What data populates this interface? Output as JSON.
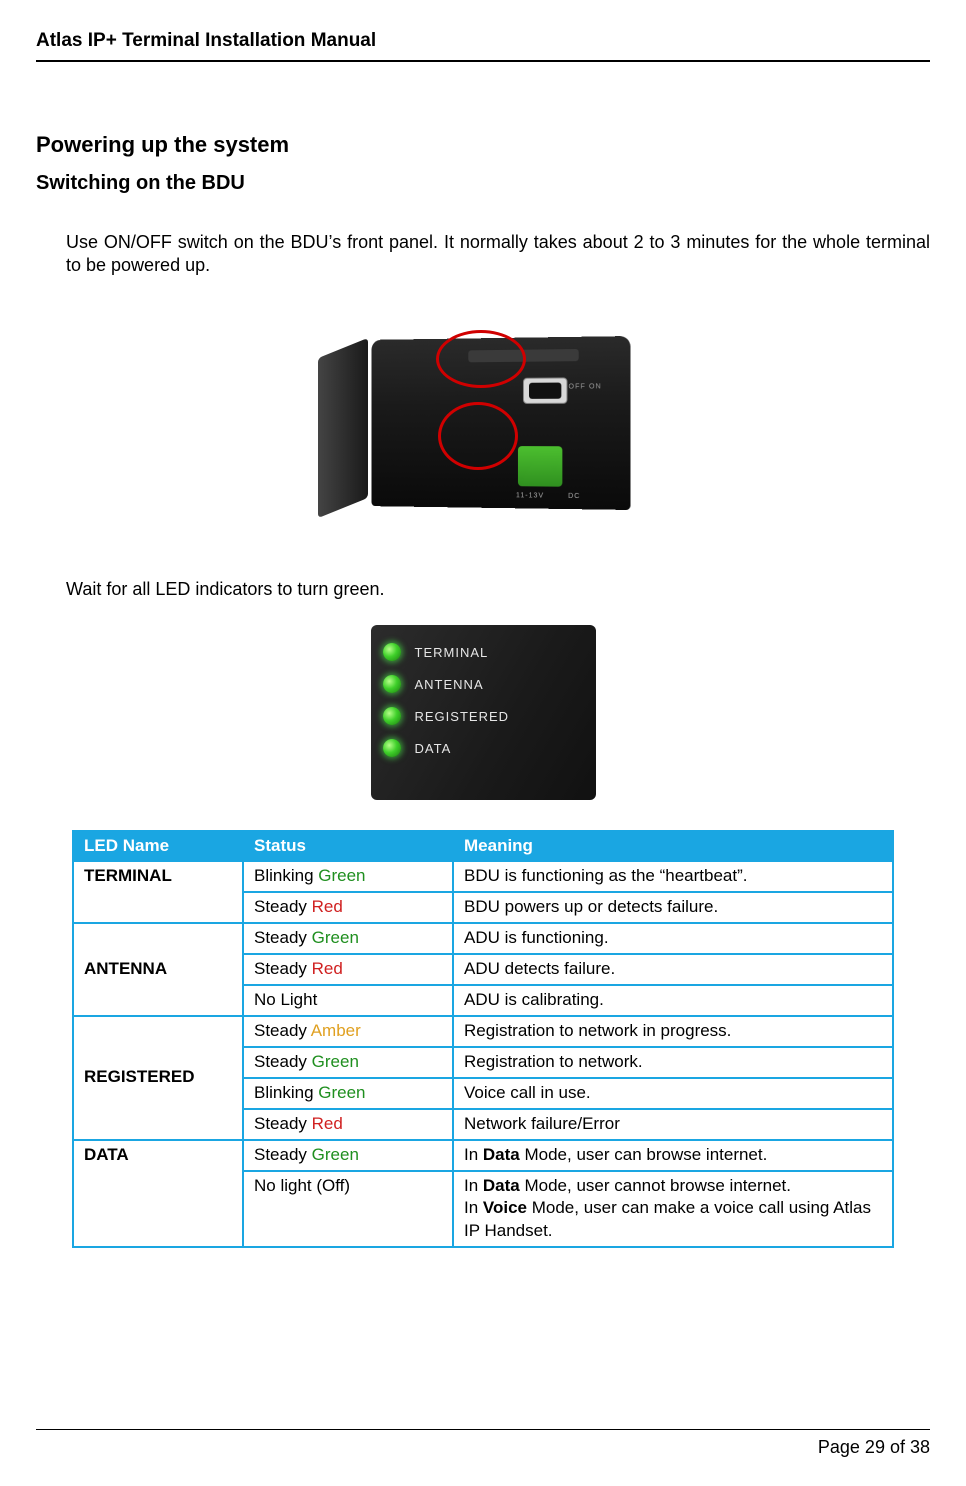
{
  "header": {
    "title": "Atlas IP+ Terminal Installation Manual"
  },
  "h1": "Powering up the system",
  "h2": "Switching on the BDU",
  "para1": "Use ON/OFF switch on the BDU’s front panel. It normally takes about 2 to 3 minutes for the whole terminal to be powered up.",
  "para2": "Wait for all LED indicators to turn green.",
  "fig1": {
    "off_on_label": "OFF    ON",
    "dc_label": "11-13V        DC",
    "oval_border_color": "#d00000"
  },
  "led_panel": {
    "background_colors": [
      "#2c2c2c",
      "#1a1a1a",
      "#111111"
    ],
    "led_color_gradient": [
      "#b6ff8a",
      "#3fd02a",
      "#1a7a0e"
    ],
    "labels": [
      "TERMINAL",
      "ANTENNA",
      "REGISTERED",
      "DATA"
    ],
    "text_color": "#e6e6e6"
  },
  "table": {
    "border_color": "#1aa6e2",
    "header_bg": "#1aa6e2",
    "header_fg": "#ffffff",
    "status_colors": {
      "green": "#1f8f1f",
      "red": "#d02020",
      "amber": "#e0a020"
    },
    "columns": [
      "LED Name",
      "Status",
      "Meaning"
    ],
    "groups": [
      {
        "name": "TERMINAL",
        "rows": [
          {
            "status_prefix": "Blinking ",
            "status_color_word": "Green",
            "status_color": "green",
            "meaning": [
              {
                "t": "BDU is functioning as the “heartbeat”."
              }
            ]
          },
          {
            "status_prefix": "Steady ",
            "status_color_word": "Red",
            "status_color": "red",
            "meaning": [
              {
                "t": "BDU powers up or detects failure."
              }
            ]
          }
        ]
      },
      {
        "name": "ANTENNA",
        "rows": [
          {
            "status_prefix": "Steady ",
            "status_color_word": "Green",
            "status_color": "green",
            "meaning": [
              {
                "t": "ADU is functioning."
              }
            ]
          },
          {
            "status_prefix": "Steady ",
            "status_color_word": "Red",
            "status_color": "red",
            "meaning": [
              {
                "t": "ADU detects failure."
              }
            ]
          },
          {
            "status_plain": "No Light",
            "meaning": [
              {
                "t": "ADU is calibrating."
              }
            ]
          }
        ]
      },
      {
        "name": "REGISTERED",
        "rows": [
          {
            "status_prefix": "Steady ",
            "status_color_word": "Amber",
            "status_color": "amber",
            "meaning": [
              {
                "t": "Registration to network in progress."
              }
            ]
          },
          {
            "status_prefix": "Steady ",
            "status_color_word": "Green",
            "status_color": "green",
            "meaning": [
              {
                "t": "Registration to network."
              }
            ]
          },
          {
            "status_prefix": "Blinking ",
            "status_color_word": "Green",
            "status_color": "green",
            "meaning": [
              {
                "t": "Voice call in use."
              }
            ]
          },
          {
            "status_prefix": "Steady ",
            "status_color_word": "Red",
            "status_color": "red",
            "meaning": [
              {
                "t": "Network failure/Error"
              }
            ]
          }
        ]
      },
      {
        "name": "DATA",
        "rows": [
          {
            "status_prefix": "Steady ",
            "status_color_word": "Green",
            "status_color": "green",
            "meaning": [
              {
                "t": "In "
              },
              {
                "t": "Data",
                "bold": true
              },
              {
                "t": " Mode, user can browse internet."
              }
            ]
          },
          {
            "status_plain": "No light (Off)",
            "meaning": [
              {
                "t": "In "
              },
              {
                "t": "Data",
                "bold": true
              },
              {
                "t": " Mode, user cannot browse internet."
              },
              {
                "br": true
              },
              {
                "t": "In "
              },
              {
                "t": "Voice",
                "bold": true
              },
              {
                "t": " Mode, user can make a voice call using Atlas IP Handset."
              }
            ]
          }
        ]
      }
    ]
  },
  "footer": {
    "page": "Page 29 of 38"
  }
}
